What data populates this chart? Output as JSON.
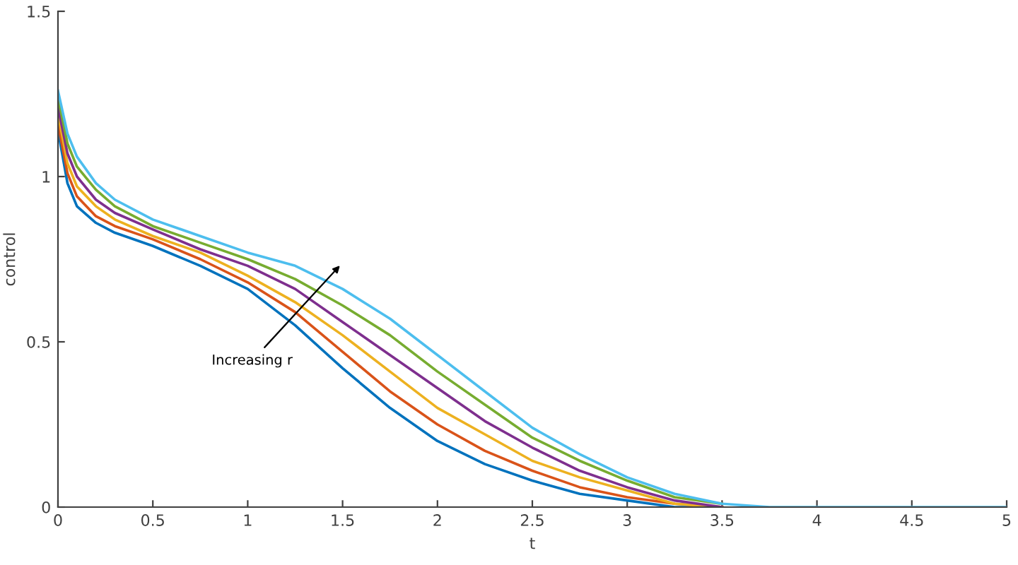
{
  "chart_data": {
    "type": "line",
    "xlabel": "t",
    "ylabel": "control",
    "xlim": [
      0,
      5
    ],
    "ylim": [
      0,
      1.5
    ],
    "xticks": [
      0,
      0.5,
      1,
      1.5,
      2,
      2.5,
      3,
      3.5,
      4,
      4.5,
      5
    ],
    "yticks": [
      0,
      0.5,
      1,
      1.5
    ],
    "grid": false,
    "legend": false,
    "marker": "none",
    "line_style": "solid",
    "x": [
      0,
      0.05,
      0.1,
      0.2,
      0.3,
      0.5,
      0.75,
      1,
      1.25,
      1.5,
      1.75,
      2,
      2.25,
      2.5,
      2.75,
      3,
      3.25,
      3.5,
      3.75,
      4,
      5
    ],
    "series": [
      {
        "color": "#0072bd",
        "values": [
          1.14,
          0.98,
          0.91,
          0.86,
          0.83,
          0.79,
          0.73,
          0.66,
          0.55,
          0.42,
          0.3,
          0.2,
          0.13,
          0.08,
          0.04,
          0.02,
          0,
          0,
          null,
          null,
          null
        ]
      },
      {
        "color": "#d95319",
        "values": [
          1.16,
          1.01,
          0.94,
          0.88,
          0.85,
          0.81,
          0.75,
          0.68,
          0.59,
          0.47,
          0.35,
          0.25,
          0.17,
          0.11,
          0.06,
          0.03,
          0.01,
          0,
          null,
          null,
          null
        ]
      },
      {
        "color": "#edb120",
        "values": [
          1.19,
          1.04,
          0.97,
          0.91,
          0.87,
          0.82,
          0.77,
          0.7,
          0.62,
          0.52,
          0.41,
          0.3,
          0.22,
          0.14,
          0.09,
          0.05,
          0.01,
          0,
          null,
          null,
          null
        ]
      },
      {
        "color": "#7e2f8e",
        "values": [
          1.21,
          1.07,
          1.0,
          0.93,
          0.89,
          0.84,
          0.78,
          0.73,
          0.66,
          0.56,
          0.46,
          0.36,
          0.26,
          0.18,
          0.11,
          0.06,
          0.02,
          0,
          null,
          null,
          null
        ]
      },
      {
        "color": "#77ac30",
        "values": [
          1.24,
          1.1,
          1.03,
          0.96,
          0.91,
          0.85,
          0.8,
          0.75,
          0.69,
          0.61,
          0.52,
          0.41,
          0.31,
          0.21,
          0.14,
          0.08,
          0.03,
          0.01,
          null,
          null,
          null
        ]
      },
      {
        "color": "#4dbeee",
        "values": [
          1.26,
          1.13,
          1.06,
          0.98,
          0.93,
          0.87,
          0.82,
          0.77,
          0.73,
          0.66,
          0.57,
          0.46,
          0.35,
          0.24,
          0.16,
          0.09,
          0.04,
          0.01,
          0,
          0,
          0
        ]
      }
    ],
    "annotations": [
      "Increasing r"
    ]
  }
}
